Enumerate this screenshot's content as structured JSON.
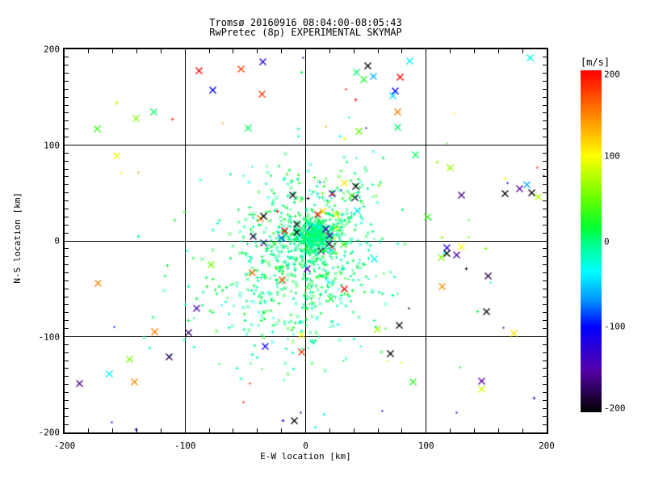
{
  "title": {
    "line1": "Tromsø 20160916 08:04:00-08:05:43",
    "line2": "RwPretec (8p) EXPERIMENTAL SKYMAP"
  },
  "axes": {
    "x": {
      "label": "E-W location [km]",
      "min": -200,
      "max": 200,
      "ticks": [
        {
          "v": -200,
          "label": "-200"
        },
        {
          "v": -100,
          "label": "-100"
        },
        {
          "v": 0,
          "label": "0"
        },
        {
          "v": 100,
          "label": "100"
        },
        {
          "v": 200,
          "label": "200"
        }
      ],
      "minor_step": 20,
      "grid": [
        -100,
        0,
        100
      ]
    },
    "y": {
      "label": "N-S location [km]",
      "min": -200,
      "max": 200,
      "ticks": [
        {
          "v": 200,
          "label": "200"
        },
        {
          "v": 100,
          "label": "100"
        },
        {
          "v": 0,
          "label": "0"
        },
        {
          "v": -100,
          "label": "-100"
        },
        {
          "v": -200,
          "label": "-200"
        }
      ],
      "minor_divisions": 48,
      "major_every": 12,
      "grid": [
        -100,
        0,
        100
      ]
    }
  },
  "colorbar": {
    "title": "[m/s]",
    "min": -200,
    "max": 200,
    "ticks": [
      {
        "v": 200,
        "label": "200"
      },
      {
        "v": 100,
        "label": "100"
      },
      {
        "v": 0,
        "label": "0"
      },
      {
        "v": -100,
        "label": "-100"
      },
      {
        "v": -200,
        "label": "-200"
      }
    ],
    "stops": [
      {
        "v": 200,
        "c": "#FF0000"
      },
      {
        "v": 150,
        "c": "#FF7F00"
      },
      {
        "v": 100,
        "c": "#FFFF00"
      },
      {
        "v": 50,
        "c": "#66FF00"
      },
      {
        "v": 15,
        "c": "#00FF33"
      },
      {
        "v": 0,
        "c": "#00FF7F"
      },
      {
        "v": -35,
        "c": "#00FFFF"
      },
      {
        "v": -70,
        "c": "#0090FF"
      },
      {
        "v": -100,
        "c": "#0000FF"
      },
      {
        "v": -150,
        "c": "#5500AA"
      },
      {
        "v": -200,
        "c": "#000000"
      }
    ]
  },
  "chart_data": {
    "type": "scatter",
    "title": "Tromsø 20160916 08:04:00-08:05:43 — RwPretec (8p) EXPERIMENTAL SKYMAP",
    "xlabel": "E-W location [km]",
    "ylabel": "N-S location [km]",
    "xlim": [
      -200,
      200
    ],
    "ylim": [
      -200,
      200
    ],
    "color_axis": {
      "label": "[m/s]",
      "range": [
        -200,
        200
      ]
    },
    "grid": "major lines at -100, 0, 100 on both axes",
    "legend": "none (colorbar encodes Doppler velocity in m/s)",
    "seed": 20160916,
    "clusters": [
      {
        "n": 450,
        "cx": 8,
        "cy": 6,
        "sx": 8,
        "sy": 9,
        "v_mean": 0,
        "v_sigma": 8,
        "wild": 0.02
      },
      {
        "n": 520,
        "cx": -3,
        "cy": -14,
        "sx": 30,
        "sy": 36,
        "v_mean": 0,
        "v_sigma": 14,
        "wild": 0.025
      },
      {
        "n": 200,
        "cx": -18,
        "cy": -62,
        "sx": 46,
        "sy": 40,
        "v_mean": 0,
        "v_sigma": 14,
        "wild": 0.02
      },
      {
        "n": 130,
        "cx": 14,
        "cy": 45,
        "sx": 26,
        "sy": 23,
        "v_mean": 5,
        "v_sigma": 20,
        "wild": 0.07
      },
      {
        "n": 60,
        "uniform": true,
        "x0": -195,
        "x1": 195,
        "y0": -195,
        "y1": 195,
        "v_uniform": true,
        "wild": 0
      }
    ],
    "outliers": [
      {
        "x": -89,
        "y": 178,
        "v": 200,
        "m": "x"
      },
      {
        "x": 51,
        "y": 183,
        "v": -200,
        "m": "x"
      },
      {
        "x": 86,
        "y": 188,
        "v": -40,
        "m": "x"
      },
      {
        "x": 42,
        "y": 176,
        "v": 5,
        "m": "x"
      },
      {
        "x": 48,
        "y": 169,
        "v": 25,
        "m": "x"
      },
      {
        "x": 56,
        "y": 172,
        "v": -60,
        "m": "x"
      },
      {
        "x": 78,
        "y": 171,
        "v": 200,
        "m": "x"
      },
      {
        "x": 74,
        "y": 157,
        "v": -100,
        "m": "x"
      },
      {
        "x": 72,
        "y": 152,
        "v": -45,
        "m": "x"
      },
      {
        "x": 33,
        "y": 159,
        "v": 200,
        "m": "dot"
      },
      {
        "x": 41,
        "y": 148,
        "v": 195,
        "m": "+"
      },
      {
        "x": 36,
        "y": 129,
        "v": -20,
        "m": "dot"
      },
      {
        "x": 76,
        "y": 119,
        "v": 5,
        "m": "x"
      },
      {
        "x": 117,
        "y": 102,
        "v": 40,
        "m": "dot"
      },
      {
        "x": 109,
        "y": 83,
        "v": 60,
        "m": "+"
      },
      {
        "x": 192,
        "y": 77,
        "v": 200,
        "m": "dot"
      },
      {
        "x": 197,
        "y": 68,
        "v": -195,
        "m": "dot"
      },
      {
        "x": 165,
        "y": 66,
        "v": 100,
        "m": "+"
      },
      {
        "x": 167,
        "y": 61,
        "v": -100,
        "m": "dot"
      },
      {
        "x": 183,
        "y": 59,
        "v": -60,
        "m": "x"
      },
      {
        "x": 177,
        "y": 55,
        "v": -150,
        "m": "x"
      },
      {
        "x": 165,
        "y": 50,
        "v": -200,
        "m": "x"
      },
      {
        "x": 129,
        "y": 48,
        "v": -160,
        "m": "x"
      },
      {
        "x": 187,
        "y": 51,
        "v": -200,
        "m": "x"
      },
      {
        "x": 101,
        "y": 25,
        "v": 35,
        "m": "x"
      },
      {
        "x": 113,
        "y": 4,
        "v": 60,
        "m": "+"
      },
      {
        "x": 135,
        "y": 4,
        "v": 45,
        "m": "dot"
      },
      {
        "x": 117,
        "y": -7,
        "v": -120,
        "m": "x"
      },
      {
        "x": 117,
        "y": -13,
        "v": -200,
        "m": "x"
      },
      {
        "x": 125,
        "y": -14,
        "v": -140,
        "m": "x"
      },
      {
        "x": 133,
        "y": -29,
        "v": -195,
        "m": "+"
      },
      {
        "x": 150,
        "y": -73,
        "v": -200,
        "m": "x"
      },
      {
        "x": 70,
        "y": -117,
        "v": -200,
        "m": "x"
      },
      {
        "x": -18,
        "y": 11,
        "v": 200,
        "m": "x"
      },
      {
        "x": -8,
        "y": 9,
        "v": -200,
        "m": "x"
      },
      {
        "x": 10,
        "y": 28,
        "v": 195,
        "m": "x"
      },
      {
        "x": 32,
        "y": -50,
        "v": 200,
        "m": "x"
      },
      {
        "x": 20,
        "y": 6,
        "v": -150,
        "m": "x"
      },
      {
        "x": 24,
        "y": 3,
        "v": 100,
        "m": "+"
      },
      {
        "x": -35,
        "y": 26,
        "v": -200,
        "m": "x"
      },
      {
        "x": -24,
        "y": 31,
        "v": 200,
        "m": "+"
      },
      {
        "x": 2,
        "y": 45,
        "v": -200,
        "m": "+"
      },
      {
        "x": -139,
        "y": 72,
        "v": 140,
        "m": "dot"
      },
      {
        "x": -153,
        "y": 71,
        "v": 110,
        "m": "dot"
      },
      {
        "x": -161,
        "y": -189,
        "v": -110,
        "m": "dot"
      },
      {
        "x": -141,
        "y": -197,
        "v": -120,
        "m": "+"
      },
      {
        "x": -163,
        "y": -138,
        "v": -40,
        "m": "x"
      },
      {
        "x": -52,
        "y": -168,
        "v": 200,
        "m": "dot"
      },
      {
        "x": 8,
        "y": -194,
        "v": -30,
        "m": "+"
      },
      {
        "x": 38,
        "y": 47,
        "v": 30,
        "m": "x"
      },
      {
        "x": 41,
        "y": 57,
        "v": -200,
        "m": "x"
      },
      {
        "x": 22,
        "y": 49,
        "v": 190,
        "m": "+"
      },
      {
        "x": 29,
        "y": 53,
        "v": -120,
        "m": "dot"
      },
      {
        "x": 12,
        "y": 62,
        "v": -80,
        "m": "dot"
      }
    ]
  }
}
